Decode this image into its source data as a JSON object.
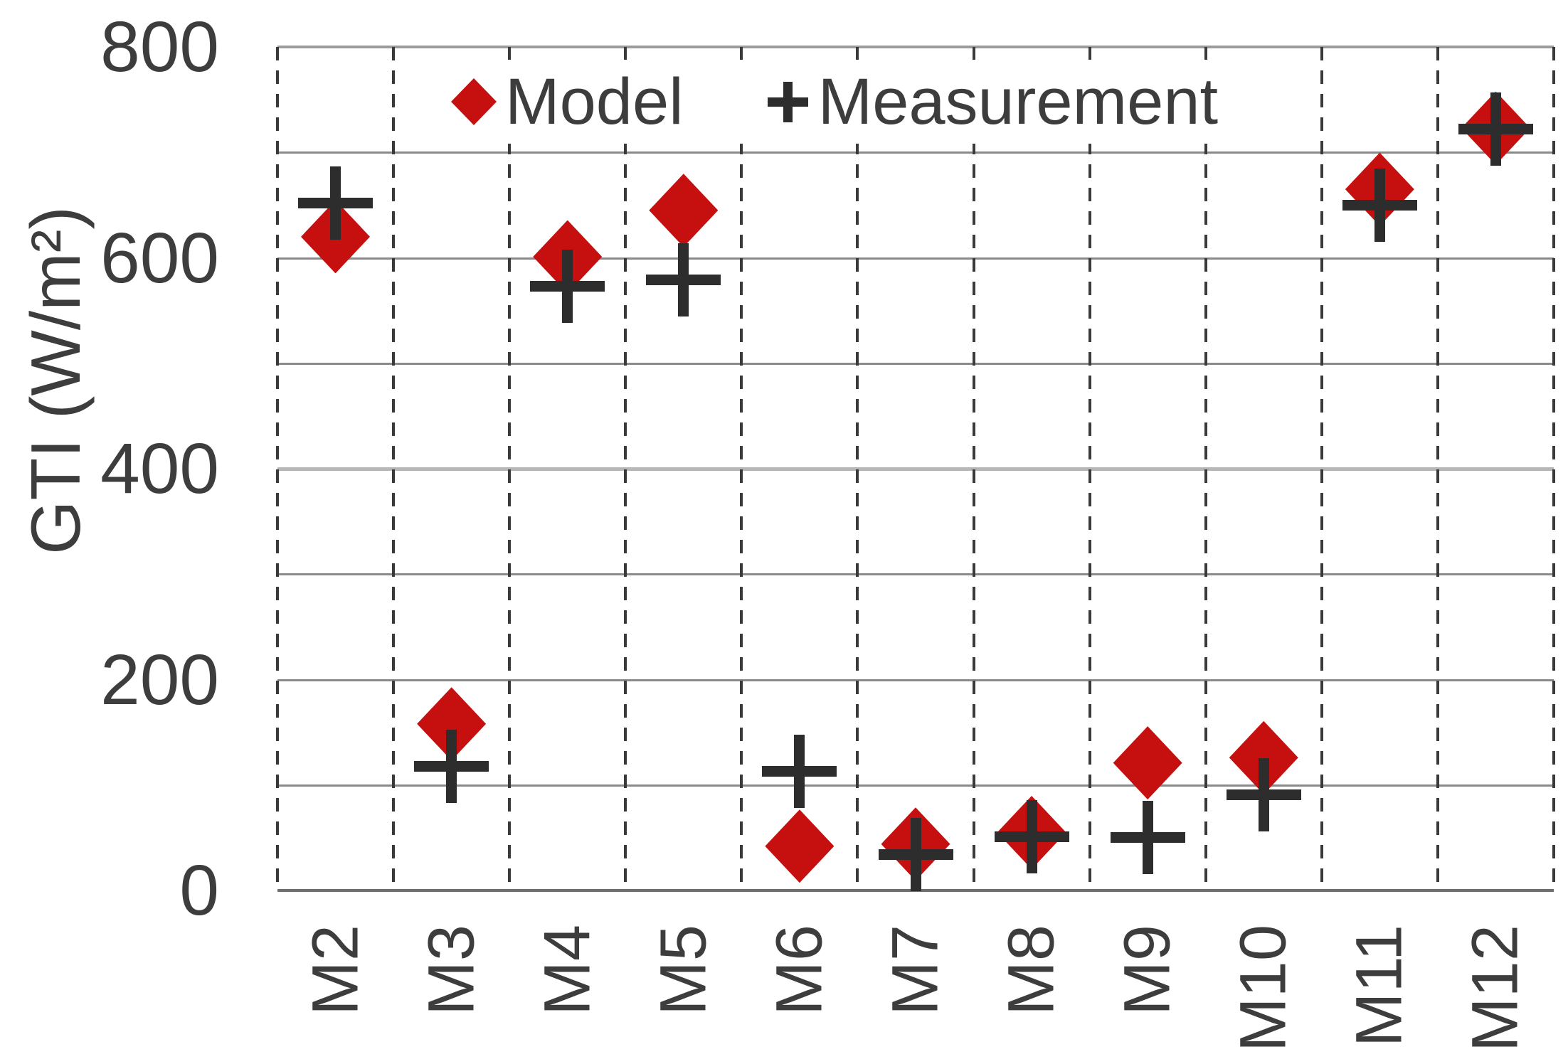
{
  "chart_data": {
    "type": "scatter",
    "title": "",
    "ylabel": "GTI (W/m²)",
    "xlabel": "",
    "categories": [
      "M2",
      "M3",
      "M4",
      "M5",
      "M6",
      "M7",
      "M8",
      "M9",
      "M10",
      "M11",
      "M12"
    ],
    "series": [
      {
        "name": "Model",
        "marker": "diamond",
        "color": "#c5100f",
        "values": [
          620,
          158,
          601,
          645,
          42,
          44,
          55,
          121,
          126,
          665,
          723
        ]
      },
      {
        "name": "Measurement",
        "marker": "plus",
        "color": "#2d2d2d",
        "values": [
          652,
          118,
          573,
          579,
          113,
          34,
          51,
          50,
          91,
          650,
          722
        ]
      }
    ],
    "ylim": [
      0,
      800
    ],
    "yticks": [
      0,
      200,
      400,
      600,
      800
    ],
    "grid_step": 100,
    "grid_style": "horizontal solid gray, vertical dashed dark at category boundaries",
    "legend_position": "top-inside",
    "axis_text_color": "#3d3d3d"
  }
}
